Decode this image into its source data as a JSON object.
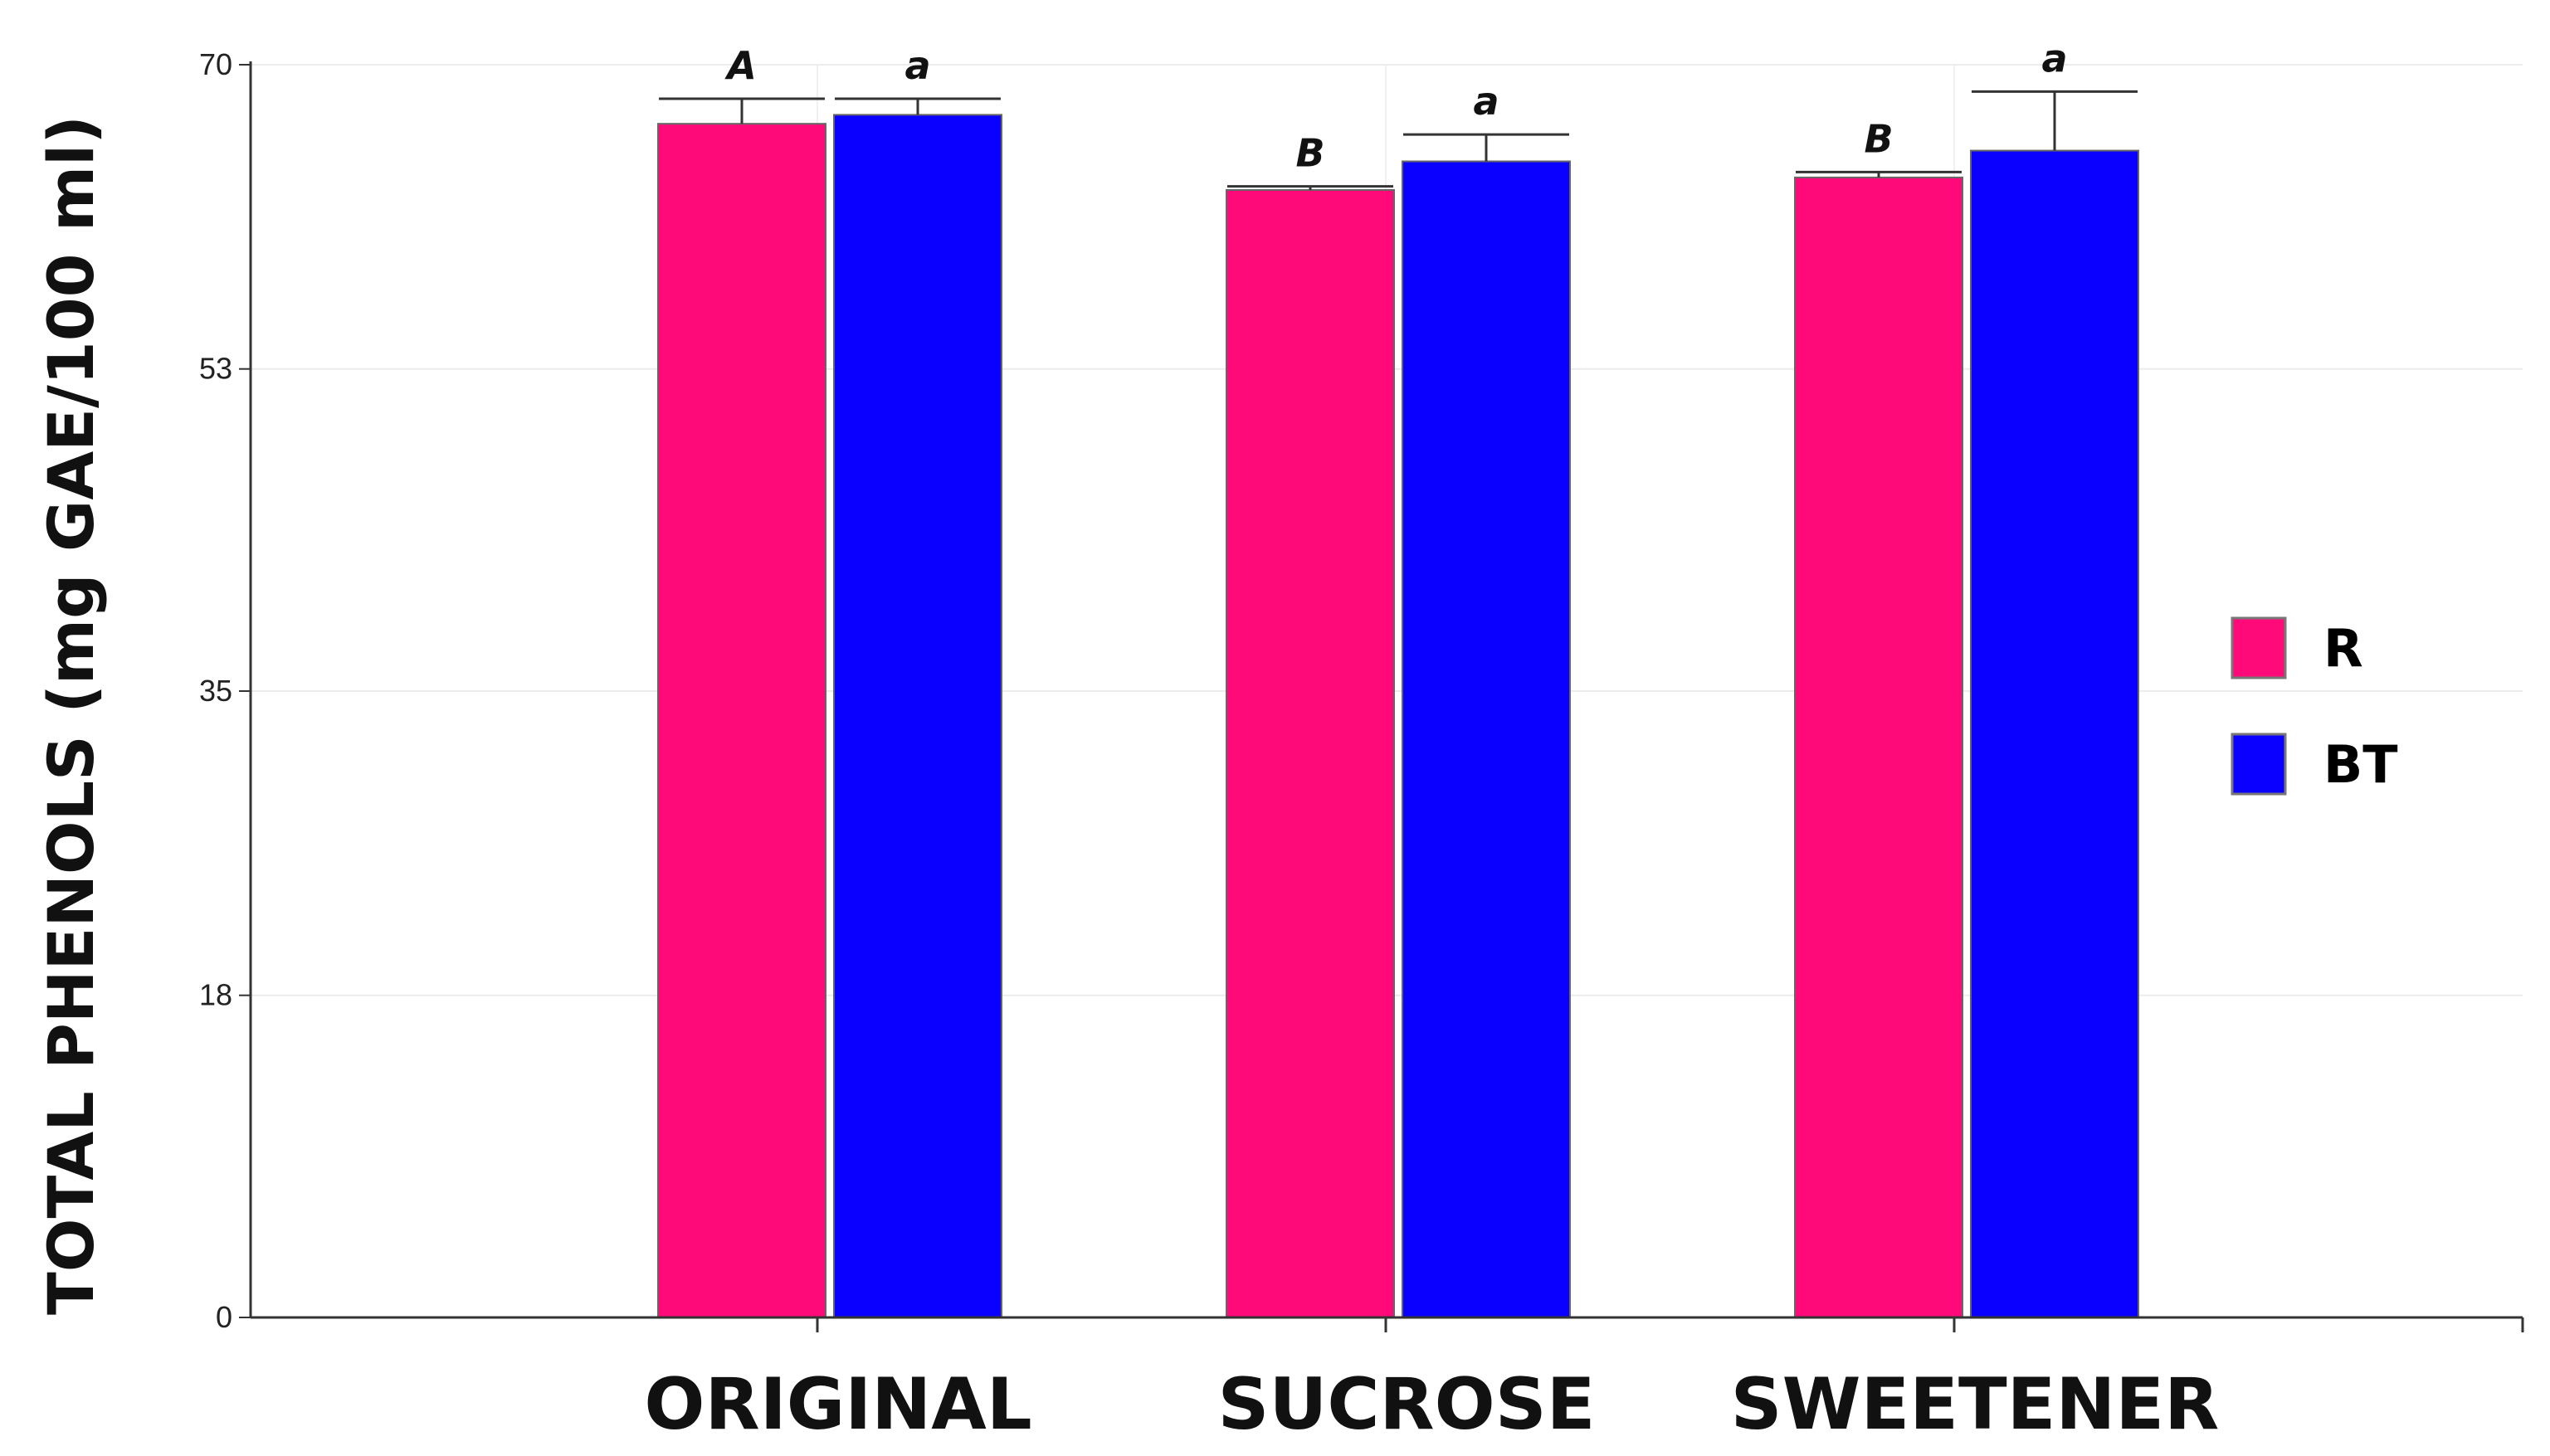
{
  "chart_data": {
    "type": "bar",
    "title": "",
    "xlabel": "",
    "ylabel": "TOTAL PHENOLS (mg GAE/100 ml)",
    "ylim": [
      0,
      70
    ],
    "yticks": [
      0,
      18,
      35,
      53,
      70
    ],
    "grid": "horizontal",
    "legend_position": "right",
    "categories": [
      "ORIGINAL",
      "SUCROSE",
      "SWEETENER"
    ],
    "series": [
      {
        "name": "R",
        "color": "#ff0a78",
        "values": [
          66.7,
          63.0,
          63.7
        ],
        "errors": [
          1.4,
          0.2,
          0.3
        ],
        "labels": [
          "A",
          "B",
          "B"
        ]
      },
      {
        "name": "BT",
        "color": "#0a00ff",
        "values": [
          67.2,
          64.6,
          65.2
        ],
        "errors": [
          0.9,
          1.5,
          3.3
        ],
        "labels": [
          "a",
          "a",
          "a"
        ]
      }
    ]
  }
}
